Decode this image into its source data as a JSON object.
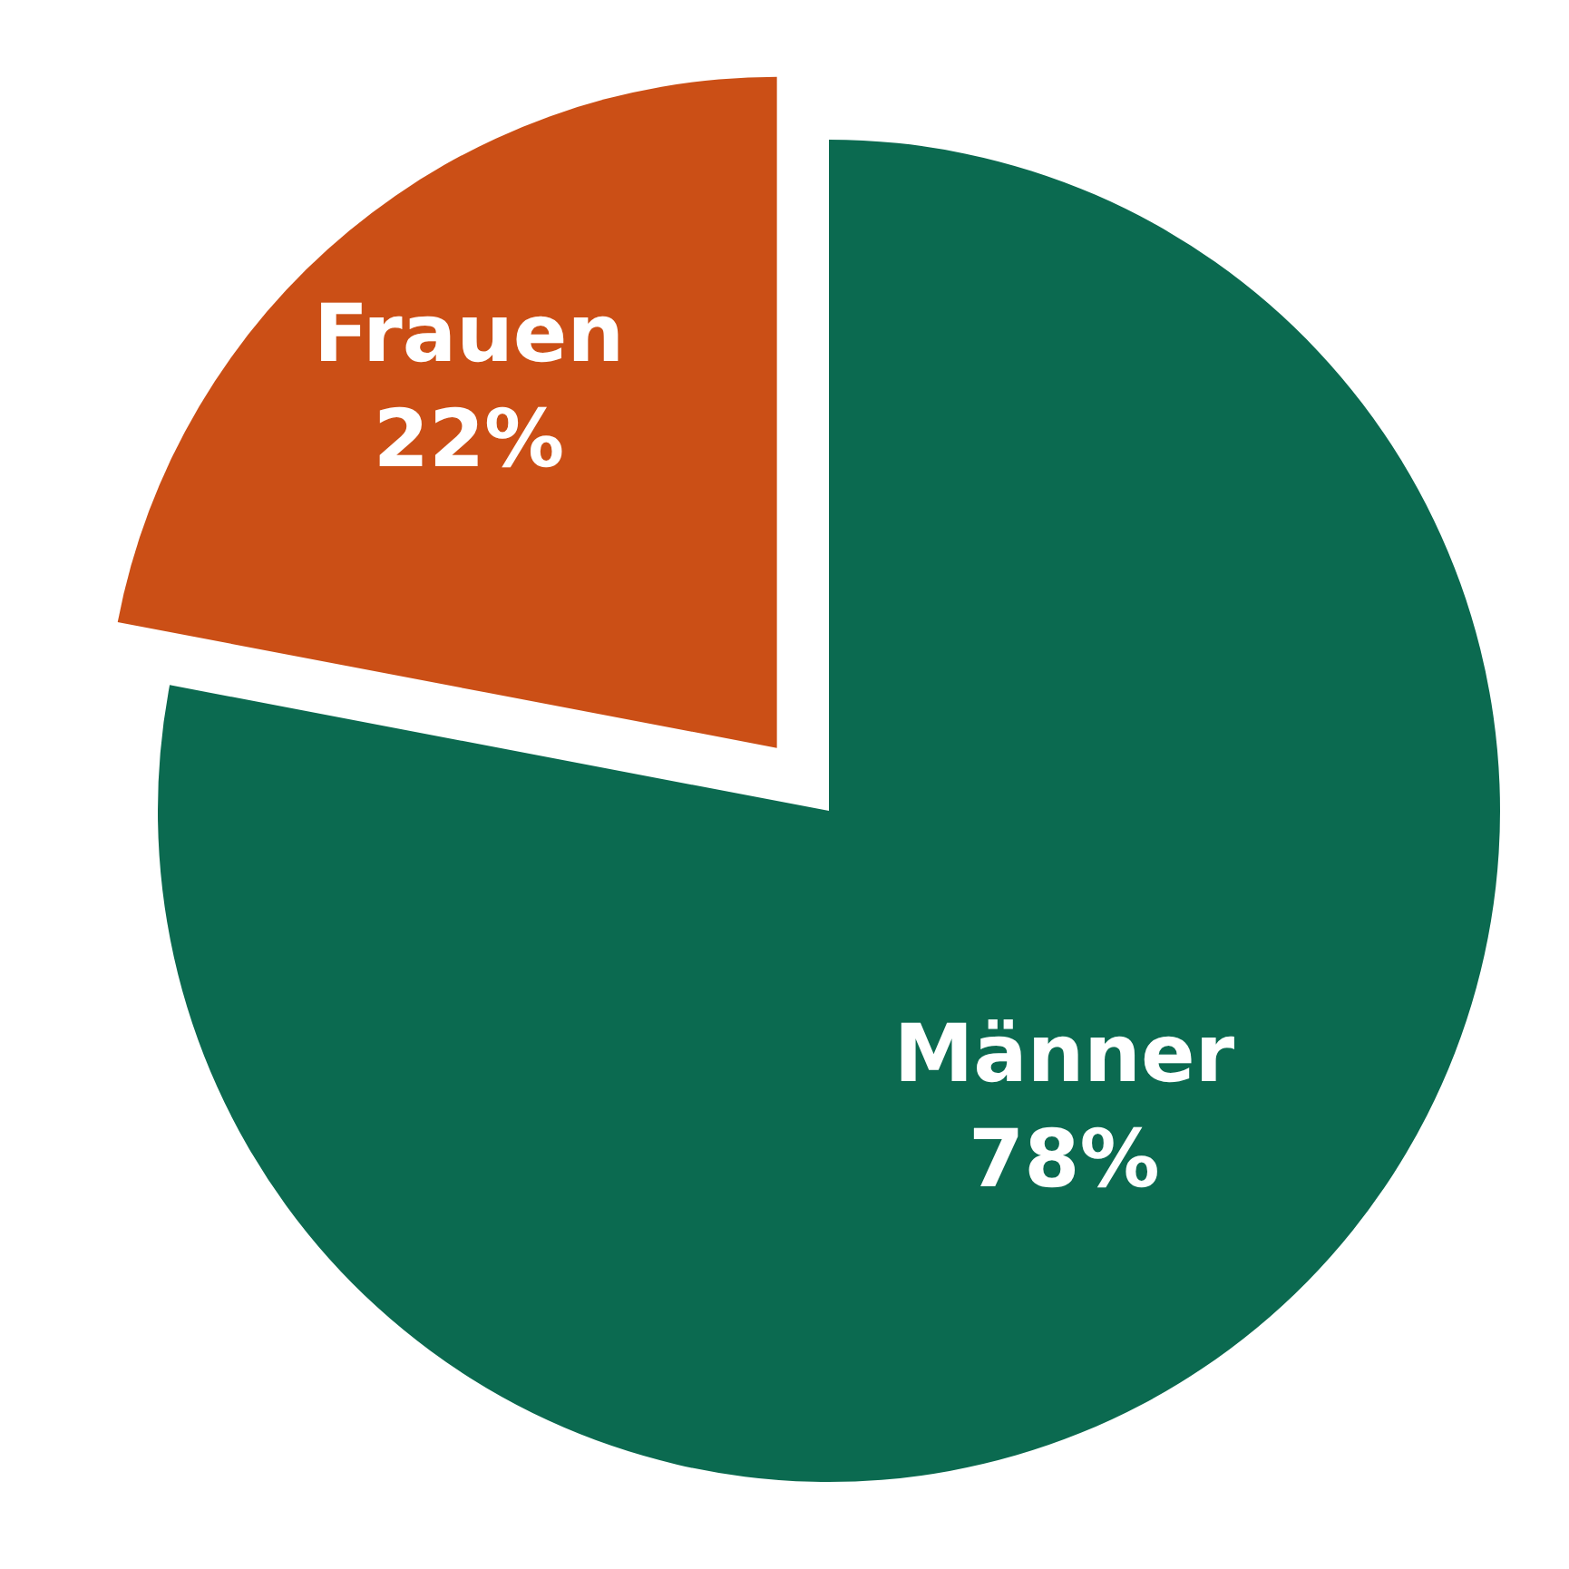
{
  "chart_data": {
    "type": "pie",
    "categories": [
      "Männer",
      "Frauen"
    ],
    "values": [
      78,
      22
    ],
    "colors": [
      "#0b6a50",
      "#cb4f16"
    ],
    "value_labels": [
      "78%",
      "22%"
    ],
    "legend": false
  }
}
